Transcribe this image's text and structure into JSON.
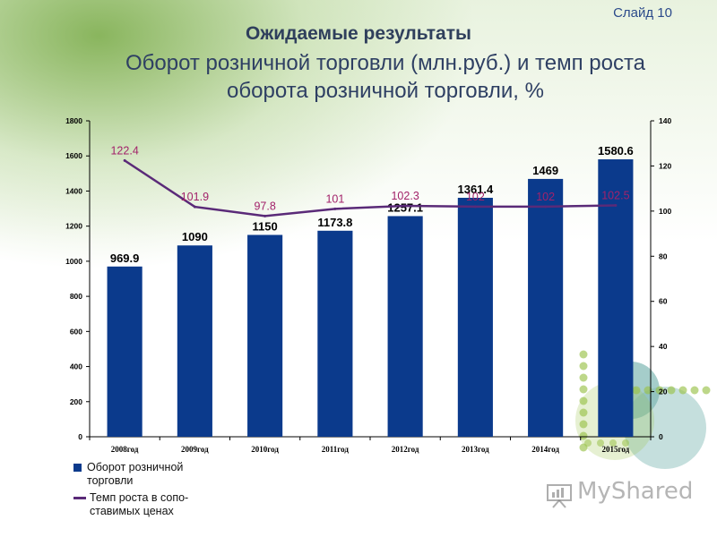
{
  "slide_label": "Слайд 10",
  "title": "Ожидаемые результаты",
  "subtitle_line1": "Оборот розничной торговли (млн.руб.) и темп роста",
  "subtitle_line2": "оборота розничной торговли, %",
  "watermark": "MyShared",
  "legend": {
    "bar_label": "Оборот розничной торговли",
    "line_label": "Темп роста в сопо-ставимых ценах"
  },
  "colors": {
    "bar": "#0b3a8c",
    "line": "#5a2a78",
    "line_label": "#a2226a",
    "accent_green": "#9ac24a",
    "accent_teal": "#7fb8b4"
  },
  "chart_data": {
    "type": "bar",
    "categories": [
      "2008год",
      "2009год",
      "2010год",
      "2011год",
      "2012год",
      "2013год",
      "2014год",
      "2015год"
    ],
    "series": [
      {
        "name": "Оборот розничной торговли",
        "type": "bar",
        "axis": "left",
        "values": [
          969.9,
          1090,
          1150,
          1173.8,
          1257.1,
          1361.4,
          1469,
          1580.6
        ],
        "labels": [
          "969.9",
          "1090",
          "1150",
          "1173.8",
          "1257.1",
          "1361.4",
          "1469",
          "1580.6"
        ]
      },
      {
        "name": "Темп роста в сопо-ставимых ценах",
        "type": "line",
        "axis": "right",
        "values": [
          122.4,
          101.9,
          97.8,
          101,
          102.3,
          102,
          102,
          102.5
        ],
        "labels": [
          "122.4",
          "101.9",
          "97.8",
          "101",
          "102.3",
          "102",
          "102",
          "102.5"
        ]
      }
    ],
    "y_left": {
      "min": 0,
      "max": 1800,
      "ticks": [
        0,
        200,
        400,
        600,
        800,
        1000,
        1200,
        1400,
        1600,
        1800
      ]
    },
    "y_right": {
      "min": 0,
      "max": 140,
      "ticks": [
        0,
        20,
        40,
        60,
        80,
        100,
        120,
        140
      ]
    },
    "grid": false,
    "legend_position": "bottom-left"
  }
}
